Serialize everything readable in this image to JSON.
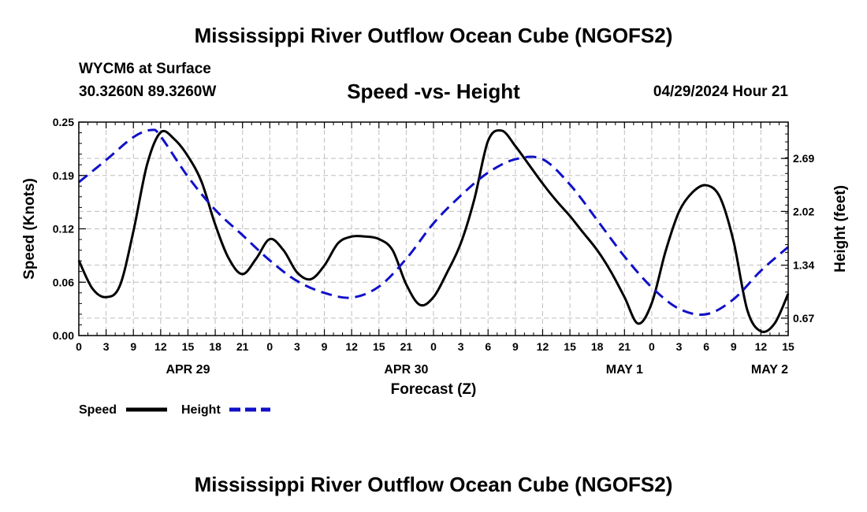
{
  "header": {
    "title": "Mississippi River Outflow Ocean Cube (NGOFS2)",
    "station": "WYCM6 at Surface",
    "coords": "30.3260N  89.3260W",
    "subtitle": "Speed -vs- Height",
    "datetime": "04/29/2024 Hour 21"
  },
  "footer": {
    "title": "Mississippi River Outflow Ocean Cube (NGOFS2)"
  },
  "chart_data": {
    "type": "line",
    "title": "Speed -vs- Height",
    "xlabel": "Forecast (Z)",
    "ylabel": "Speed (Knots)",
    "y2label": "Height (feet)",
    "x_range": [
      0,
      78
    ],
    "xticks": [
      0,
      3,
      6,
      9,
      12,
      15,
      18,
      21,
      24,
      27,
      30,
      33,
      36,
      39,
      42,
      45,
      48,
      51,
      54,
      57,
      60,
      63,
      66,
      69,
      72,
      75,
      78
    ],
    "xtick_labels": [
      "0",
      "3",
      "9",
      "12",
      "15",
      "18",
      "21",
      "0",
      "3",
      "9",
      "12",
      "15",
      "21",
      "0",
      "3",
      "6",
      "9",
      "12",
      "15",
      "18",
      "21",
      "0",
      "3",
      "6",
      "9",
      "12",
      "15"
    ],
    "date_labels": [
      {
        "x": 12,
        "label": "APR 29"
      },
      {
        "x": 36,
        "label": "APR 30"
      },
      {
        "x": 60,
        "label": "MAY 1"
      },
      {
        "x": 78,
        "label": "MAY 2"
      }
    ],
    "y_left": {
      "min": 0,
      "max": 0.25,
      "ticks": [
        "0.00",
        "0.06",
        "0.12",
        "0.19",
        "0.25"
      ],
      "tick_values": [
        0,
        0.0625,
        0.125,
        0.1875,
        0.25
      ]
    },
    "y_right": {
      "min": 0.45,
      "max": 3.15,
      "ticks": [
        "0.67",
        "1.34",
        "2.02",
        "2.69"
      ],
      "tick_values": [
        0.67,
        1.34,
        2.02,
        2.69
      ]
    },
    "legend": [
      {
        "name": "Speed",
        "color": "#000000",
        "style": "solid"
      },
      {
        "name": "Height",
        "color": "#1010c8",
        "style": "dashed"
      }
    ],
    "series": [
      {
        "name": "Speed",
        "axis": "left",
        "color": "#000000",
        "style": "solid",
        "x": [
          0,
          1.5,
          3,
          4.5,
          6,
          7.5,
          9,
          10.5,
          12,
          13.5,
          15,
          16.5,
          18,
          19.5,
          21,
          22.5,
          24,
          25.5,
          27,
          28.5,
          30,
          31.5,
          33,
          34.5,
          36,
          37.5,
          39,
          40.5,
          42,
          43.5,
          45,
          46.5,
          48,
          49.5,
          51,
          52.5,
          54,
          55.5,
          57,
          58.5,
          60,
          61.5,
          63,
          64.5,
          66,
          67.5,
          69,
          70.5,
          72,
          73.5,
          75,
          76.5,
          78
        ],
        "values": [
          0.088,
          0.055,
          0.045,
          0.058,
          0.122,
          0.2,
          0.238,
          0.23,
          0.21,
          0.18,
          0.13,
          0.09,
          0.072,
          0.09,
          0.113,
          0.1,
          0.074,
          0.066,
          0.082,
          0.108,
          0.116,
          0.116,
          0.113,
          0.1,
          0.06,
          0.036,
          0.045,
          0.074,
          0.108,
          0.16,
          0.228,
          0.24,
          0.222,
          0.2,
          0.178,
          0.158,
          0.14,
          0.12,
          0.1,
          0.075,
          0.045,
          0.014,
          0.038,
          0.098,
          0.145,
          0.168,
          0.176,
          0.162,
          0.11,
          0.03,
          0.005,
          0.014,
          0.049
        ]
      },
      {
        "name": "Height",
        "axis": "right",
        "color": "#1010c8",
        "style": "dashed",
        "x": [
          0,
          3,
          6,
          8,
          9,
          12,
          15,
          18,
          21,
          24,
          27,
          30,
          33,
          36,
          39,
          42,
          45,
          48,
          51,
          54,
          57,
          60,
          63,
          66,
          69,
          72,
          75,
          78
        ],
        "values": [
          2.39,
          2.67,
          2.96,
          3.05,
          2.97,
          2.46,
          2.04,
          1.72,
          1.4,
          1.14,
          0.99,
          0.93,
          1.07,
          1.42,
          1.87,
          2.22,
          2.51,
          2.68,
          2.68,
          2.36,
          1.91,
          1.45,
          1.06,
          0.79,
          0.72,
          0.91,
          1.27,
          1.57
        ]
      }
    ]
  }
}
